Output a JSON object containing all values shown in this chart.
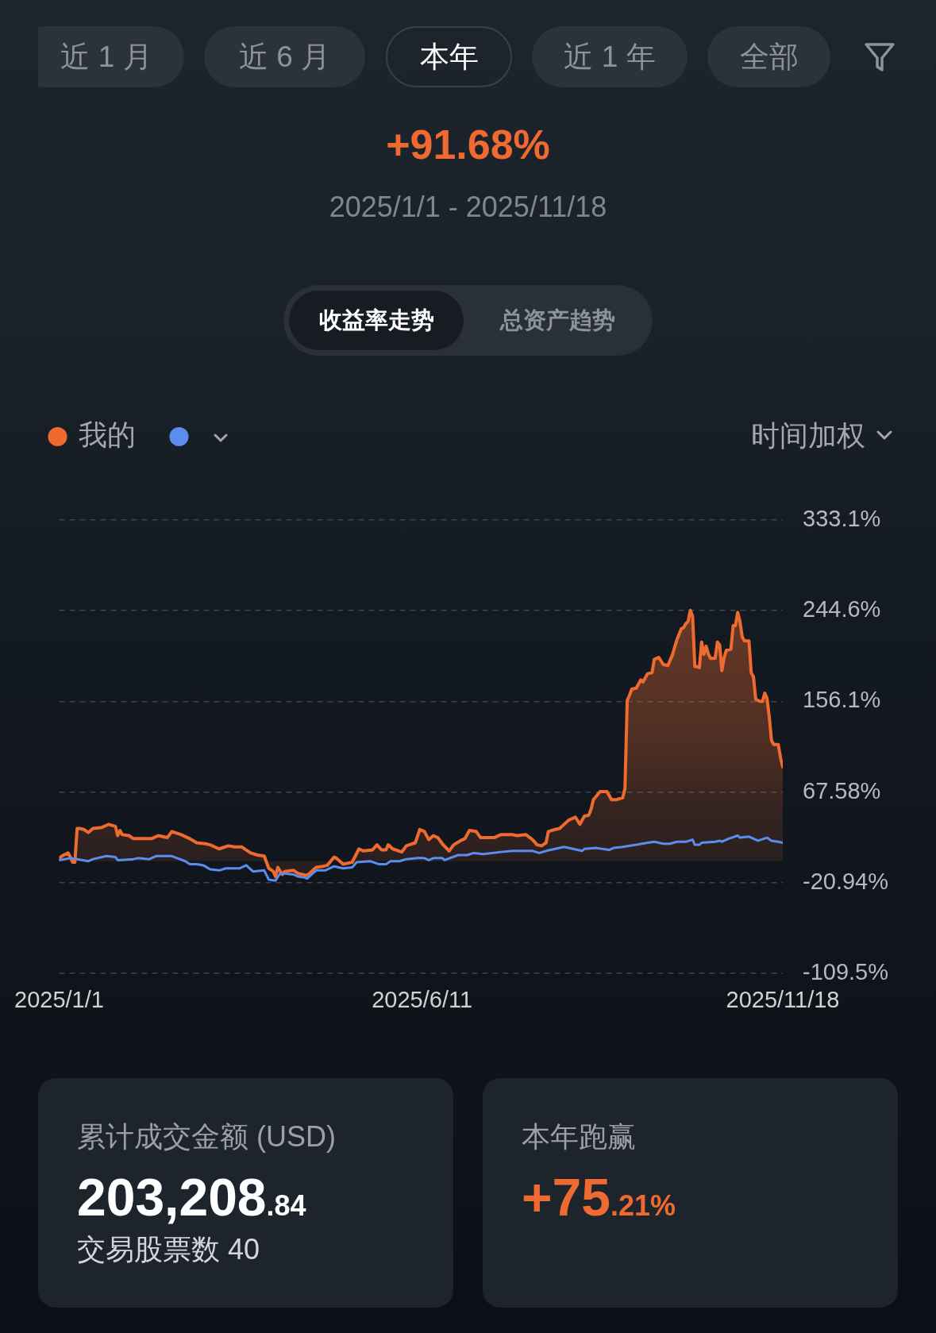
{
  "chart_data": {
    "type": "line",
    "title": "+91.68%",
    "subtitle": "2025/1/1 - 2025/11/18",
    "annotations": [
      "近 1 月",
      "近 6 月",
      "本年",
      "近 1 年",
      "全部",
      "收益率走势",
      "总资产趋势",
      "时间加权",
      "累计成交金额 (USD)",
      "203,208.84",
      "交易股票数 40",
      "本年跑赢",
      "+75.21%"
    ],
    "xlim": [
      "2025-01-01",
      "2025-11-18"
    ],
    "xticks": [
      {
        "value": "2025-01-01",
        "label": "2025/1/1"
      },
      {
        "value": "2025-06-11",
        "label": "2025/6/11"
      },
      {
        "value": "2025-11-18",
        "label": "2025/11/18"
      }
    ],
    "ylim": [
      -109.5,
      333.1
    ],
    "yticks": [
      {
        "value": -109.5,
        "label": "-109.5%"
      },
      {
        "value": -20.94,
        "label": "-20.94%"
      },
      {
        "value": 67.58,
        "label": "67.58%"
      },
      {
        "value": 156.1,
        "label": "156.1%"
      },
      {
        "value": 244.6,
        "label": "244.6%"
      },
      {
        "value": 333.1,
        "label": "333.1%"
      }
    ],
    "grid": "y",
    "legend": "top left",
    "marker": "none",
    "series": [
      {
        "name": "我的",
        "type": "area",
        "color": "#ef6a2f",
        "x": [
          "2025-01-01",
          "2025-01-03",
          "2025-01-05",
          "2025-01-06",
          "2025-01-07",
          "2025-01-08",
          "2025-01-09",
          "2025-01-10",
          "2025-01-12",
          "2025-01-14",
          "2025-01-16",
          "2025-01-20",
          "2025-01-23",
          "2025-01-26",
          "2025-01-27",
          "2025-01-28",
          "2025-01-29",
          "2025-02-01",
          "2025-02-03",
          "2025-02-11",
          "2025-02-14",
          "2025-02-18",
          "2025-02-20",
          "2025-02-24",
          "2025-02-28",
          "2025-03-03",
          "2025-03-07",
          "2025-03-09",
          "2025-03-13",
          "2025-03-17",
          "2025-03-20",
          "2025-03-23",
          "2025-03-25",
          "2025-03-27",
          "2025-03-30",
          "2025-04-02",
          "2025-04-04",
          "2025-04-06",
          "2025-04-07",
          "2025-04-08",
          "2025-04-10",
          "2025-04-11",
          "2025-04-15",
          "2025-04-17",
          "2025-04-21",
          "2025-04-25",
          "2025-04-28",
          "2025-04-30",
          "2025-05-03",
          "2025-05-04",
          "2025-05-07",
          "2025-05-11",
          "2025-05-14",
          "2025-05-16",
          "2025-05-20",
          "2025-05-22",
          "2025-05-24",
          "2025-05-26",
          "2025-05-27",
          "2025-05-29",
          "2025-06-02",
          "2025-06-04",
          "2025-06-08",
          "2025-06-10",
          "2025-06-12",
          "2025-06-14",
          "2025-06-16",
          "2025-06-18",
          "2025-06-20",
          "2025-06-23",
          "2025-06-25",
          "2025-06-28",
          "2025-06-30",
          "2025-07-02",
          "2025-07-05",
          "2025-07-07",
          "2025-07-13",
          "2025-07-16",
          "2025-07-21",
          "2025-07-23",
          "2025-07-27",
          "2025-07-30",
          "2025-08-01",
          "2025-08-03",
          "2025-08-05",
          "2025-08-06",
          "2025-08-09",
          "2025-08-11",
          "2025-08-15",
          "2025-08-18",
          "2025-08-20",
          "2025-08-22",
          "2025-08-24",
          "2025-08-25",
          "2025-08-26",
          "2025-08-29",
          "2025-09-01",
          "2025-09-03",
          "2025-09-05",
          "2025-09-08",
          "2025-09-09",
          "2025-09-10",
          "2025-09-11",
          "2025-09-12",
          "2025-09-14",
          "2025-09-16",
          "2025-09-17",
          "2025-09-19",
          "2025-09-21",
          "2025-09-22",
          "2025-09-24",
          "2025-09-26",
          "2025-09-28",
          "2025-09-30",
          "2025-10-02",
          "2025-10-04",
          "2025-10-05",
          "2025-10-06",
          "2025-10-07",
          "2025-10-08",
          "2025-10-09",
          "2025-10-10",
          "2025-10-11",
          "2025-10-12",
          "2025-10-13",
          "2025-10-14",
          "2025-10-15",
          "2025-10-16",
          "2025-10-17",
          "2025-10-19",
          "2025-10-20",
          "2025-10-21",
          "2025-10-22",
          "2025-10-23",
          "2025-10-24",
          "2025-10-26",
          "2025-10-27",
          "2025-10-28",
          "2025-10-29",
          "2025-10-30",
          "2025-10-31",
          "2025-11-01",
          "2025-11-03",
          "2025-11-04",
          "2025-11-05",
          "2025-11-06",
          "2025-11-08",
          "2025-11-09",
          "2025-11-10",
          "2025-11-11",
          "2025-11-12",
          "2025-11-13",
          "2025-11-14",
          "2025-11-16",
          "2025-11-17",
          "2025-11-18"
        ],
        "values": [
          3,
          6,
          8,
          4,
          -1,
          -1,
          32,
          32,
          31,
          28,
          32,
          33,
          36,
          34,
          25,
          30,
          26,
          25,
          22,
          22,
          25,
          23,
          29,
          26,
          22,
          18,
          17,
          16,
          12,
          15,
          14,
          14,
          11,
          8,
          6,
          5,
          -7,
          -10,
          -15,
          -6,
          -13,
          -10,
          -9,
          -12,
          -14,
          -6,
          -5,
          -4,
          4,
          3,
          -3,
          -1,
          12,
          10,
          11,
          16,
          11,
          11,
          16,
          12,
          9,
          15,
          18,
          31,
          29,
          21,
          25,
          23,
          17,
          10,
          16,
          20,
          22,
          30,
          29,
          23,
          23,
          26,
          26,
          25,
          26,
          21,
          16,
          15,
          18,
          29,
          31,
          32,
          40,
          43,
          36,
          44,
          45,
          51,
          60,
          68,
          68,
          60,
          60,
          62,
          71,
          157,
          162,
          168,
          169,
          177,
          175,
          183,
          184,
          197,
          199,
          192,
          191,
          201,
          216,
          227,
          228,
          232,
          234,
          245,
          239,
          190,
          190,
          189,
          214,
          202,
          210,
          202,
          198,
          198,
          214,
          211,
          186,
          199,
          206,
          207,
          230,
          230,
          243,
          234,
          219,
          215,
          215,
          184,
          180,
          158,
          156,
          156,
          164,
          159,
          141,
          118,
          114,
          114,
          101,
          92
        ]
      },
      {
        "type": "line",
        "color": "#5b8def",
        "x": [
          "2025-01-01",
          "2025-01-06",
          "2025-01-09",
          "2025-01-14",
          "2025-01-16",
          "2025-01-22",
          "2025-01-26",
          "2025-01-27",
          "2025-02-03",
          "2025-02-05",
          "2025-02-10",
          "2025-02-13",
          "2025-02-20",
          "2025-02-26",
          "2025-02-28",
          "2025-03-03",
          "2025-03-06",
          "2025-03-09",
          "2025-03-13",
          "2025-03-16",
          "2025-03-22",
          "2025-03-25",
          "2025-03-28",
          "2025-04-02",
          "2025-04-04",
          "2025-04-07",
          "2025-04-09",
          "2025-04-11",
          "2025-04-15",
          "2025-04-17",
          "2025-04-20",
          "2025-04-21",
          "2025-04-25",
          "2025-04-29",
          "2025-05-03",
          "2025-05-07",
          "2025-05-11",
          "2025-05-13",
          "2025-05-19",
          "2025-05-23",
          "2025-05-26",
          "2025-05-28",
          "2025-06-01",
          "2025-06-04",
          "2025-06-09",
          "2025-06-12",
          "2025-06-14",
          "2025-06-16",
          "2025-06-20",
          "2025-06-21",
          "2025-06-27",
          "2025-07-01",
          "2025-07-04",
          "2025-07-08",
          "2025-07-12",
          "2025-07-16",
          "2025-07-21",
          "2025-07-25",
          "2025-07-30",
          "2025-08-02",
          "2025-08-05",
          "2025-08-09",
          "2025-08-13",
          "2025-08-17",
          "2025-08-21",
          "2025-08-22",
          "2025-08-27",
          "2025-09-02",
          "2025-09-04",
          "2025-09-08",
          "2025-09-14",
          "2025-09-19",
          "2025-09-22",
          "2025-09-26",
          "2025-09-29",
          "2025-10-02",
          "2025-10-06",
          "2025-10-09",
          "2025-10-10",
          "2025-10-12",
          "2025-10-13",
          "2025-10-19",
          "2025-10-21",
          "2025-10-22",
          "2025-10-25",
          "2025-10-29",
          "2025-10-30",
          "2025-11-03",
          "2025-11-07",
          "2025-11-11",
          "2025-11-13",
          "2025-11-16",
          "2025-11-18"
        ],
        "values": [
          1,
          3,
          2,
          0,
          2,
          5,
          4,
          1,
          2,
          3,
          2,
          5,
          5,
          0,
          -3,
          -3,
          -4,
          -8,
          -9,
          -7,
          -7,
          -4,
          -10,
          -9,
          -18,
          -19,
          -12,
          -12,
          -13,
          -15,
          -16,
          -17,
          -9,
          -9,
          -5,
          -7,
          -6,
          -1,
          0,
          -3,
          -3,
          0,
          0,
          2,
          3,
          3,
          1,
          3,
          3,
          1,
          6,
          6,
          8,
          7,
          8,
          9,
          10,
          10,
          10,
          8,
          10,
          12,
          14,
          12,
          10,
          12,
          13,
          11,
          13,
          14,
          16,
          18,
          19,
          17,
          17,
          19,
          19,
          21,
          16,
          16,
          18,
          19,
          20,
          19,
          22,
          25,
          23,
          24,
          20,
          23,
          20,
          19,
          18
        ]
      }
    ]
  }
}
